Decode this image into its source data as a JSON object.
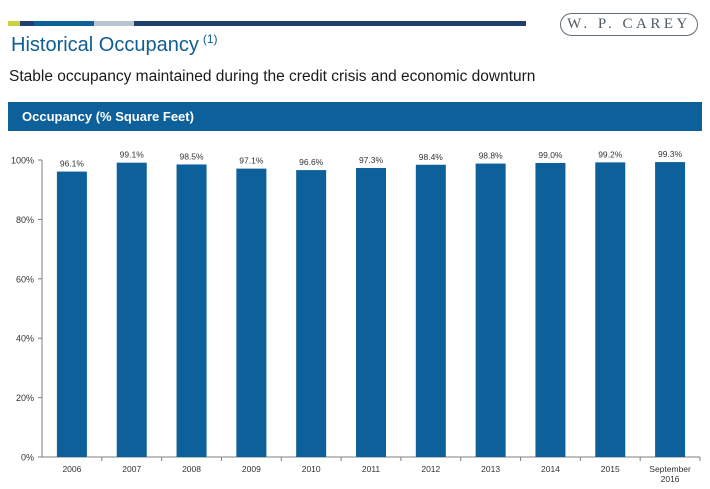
{
  "header": {
    "logo_text": "W. P. CAREY",
    "title": "Historical Occupancy",
    "title_footnote": "(1)",
    "subtitle": "Stable occupancy maintained during the credit crisis and economic downturn",
    "accent_colors": [
      "#c9d33b",
      "#1f3f6e",
      "#0e609a",
      "#b8c4d0",
      "#1f3f6e"
    ]
  },
  "section": {
    "band_title": "Occupancy (% Square Feet)",
    "band_color": "#0e609a"
  },
  "chart_data": {
    "type": "bar",
    "title": "Occupancy (% Square Feet)",
    "categories": [
      "2006",
      "2007",
      "2008",
      "2009",
      "2010",
      "2011",
      "2012",
      "2013",
      "2014",
      "2015",
      "September 2016"
    ],
    "values": [
      96.1,
      99.1,
      98.5,
      97.1,
      96.6,
      97.3,
      98.4,
      98.8,
      99.0,
      99.2,
      99.3
    ],
    "data_labels": [
      "96.1%",
      "99.1%",
      "98.5%",
      "97.1%",
      "96.6%",
      "97.3%",
      "98.4%",
      "98.8%",
      "99.0%",
      "99.2%",
      "99.3%"
    ],
    "ylim": [
      0,
      100
    ],
    "yticks": [
      0,
      20,
      40,
      60,
      80,
      100
    ],
    "ytick_labels": [
      "0%",
      "20%",
      "40%",
      "60%",
      "80%",
      "100%"
    ],
    "xlabel": "",
    "ylabel": "",
    "grid": false,
    "legend": "none",
    "bar_color": "#0e609a"
  }
}
